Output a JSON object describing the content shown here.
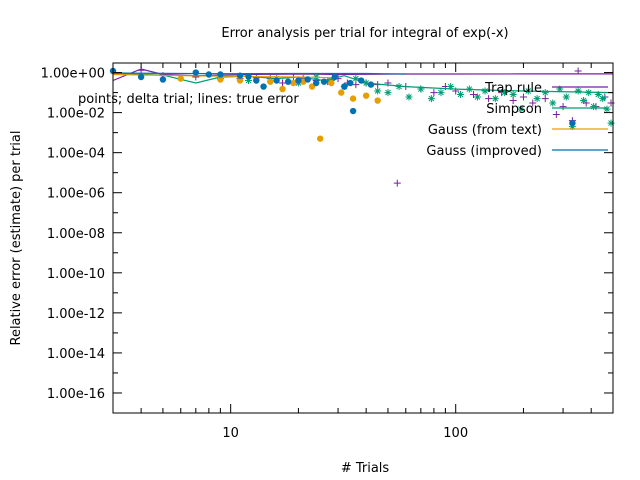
{
  "chart_data": {
    "type": "scatter",
    "title": "Error analysis per trial for integral of exp(-x)",
    "xlabel": "# Trials",
    "ylabel": "Relative error (estimate) per trial",
    "x_scale": "log",
    "y_scale": "log",
    "xlim": [
      3,
      500
    ],
    "ylim": [
      1e-17,
      3
    ],
    "x_ticks": [
      {
        "value": 10,
        "label": "10"
      },
      {
        "value": 100,
        "label": "100"
      }
    ],
    "y_ticks": [
      {
        "value": 1,
        "label": "1.00e+00"
      },
      {
        "value": 0.01,
        "label": "1.00e-02"
      },
      {
        "value": 0.0001,
        "label": "1.00e-04"
      },
      {
        "value": 1e-06,
        "label": "1.00e-06"
      },
      {
        "value": 1e-08,
        "label": "1.00e-08"
      },
      {
        "value": 1e-10,
        "label": "1.00e-10"
      },
      {
        "value": 1e-12,
        "label": "1.00e-12"
      },
      {
        "value": 1e-14,
        "label": "1.00e-14"
      },
      {
        "value": 1e-16,
        "label": "1.00e-16"
      }
    ],
    "grid": false,
    "legend_position": "top-right",
    "annotation": "points; delta trial; lines: true error",
    "series": [
      {
        "name": "Trap rule",
        "color": "#7b1fa2",
        "marker": "plus",
        "line": [
          [
            3,
            0.4
          ],
          [
            4,
            1.5
          ],
          [
            5,
            0.8
          ],
          [
            7,
            0.7
          ],
          [
            9,
            0.75
          ],
          [
            12,
            0.8
          ],
          [
            16,
            0.82
          ],
          [
            22,
            0.85
          ],
          [
            30,
            0.8
          ],
          [
            40,
            0.82
          ],
          [
            60,
            0.85
          ],
          [
            100,
            0.85
          ],
          [
            200,
            0.86
          ],
          [
            500,
            0.86
          ]
        ],
        "points": [
          [
            4,
            1.3
          ],
          [
            5,
            0.7
          ],
          [
            7,
            0.6
          ],
          [
            9,
            0.5
          ],
          [
            11,
            0.5
          ],
          [
            13,
            0.55
          ],
          [
            15,
            0.5
          ],
          [
            17,
            0.3
          ],
          [
            19,
            0.6
          ],
          [
            21,
            0.5
          ],
          [
            24,
            0.4
          ],
          [
            27,
            0.35
          ],
          [
            30,
            0.5
          ],
          [
            33,
            0.3
          ],
          [
            36,
            0.25
          ],
          [
            40,
            0.3
          ],
          [
            45,
            0.25
          ],
          [
            50,
            0.3
          ],
          [
            55,
            3e-06
          ],
          [
            60,
            0.2
          ],
          [
            70,
            0.15
          ],
          [
            80,
            0.1
          ],
          [
            90,
            0.2
          ],
          [
            100,
            0.12
          ],
          [
            120,
            0.08
          ],
          [
            140,
            0.05
          ],
          [
            160,
            0.1
          ],
          [
            180,
            0.04
          ],
          [
            200,
            0.06
          ],
          [
            220,
            0.03
          ],
          [
            250,
            0.05
          ],
          [
            280,
            0.008
          ],
          [
            300,
            0.02
          ],
          [
            330,
            0.004
          ],
          [
            350,
            1.2
          ],
          [
            380,
            0.03
          ],
          [
            420,
            0.02
          ],
          [
            460,
            0.06
          ],
          [
            490,
            0.03
          ]
        ]
      },
      {
        "name": "Simpson",
        "color": "#009e73",
        "marker": "star",
        "line": [
          [
            3,
            0.9
          ],
          [
            5,
            0.75
          ],
          [
            7,
            0.3
          ],
          [
            9,
            0.6
          ],
          [
            12,
            0.65
          ],
          [
            16,
            0.5
          ],
          [
            20,
            0.6
          ],
          [
            26,
            0.4
          ],
          [
            32,
            0.7
          ],
          [
            40,
            0.3
          ],
          [
            60,
            0.2
          ],
          [
            100,
            0.15
          ],
          [
            200,
            0.12
          ],
          [
            500,
            0.1
          ]
        ],
        "points": [
          [
            12,
            0.4
          ],
          [
            16,
            0.5
          ],
          [
            20,
            0.3
          ],
          [
            24,
            0.6
          ],
          [
            28,
            0.4
          ],
          [
            32,
            0.2
          ],
          [
            36,
            0.5
          ],
          [
            40,
            0.3
          ],
          [
            45,
            0.12
          ],
          [
            50,
            0.1
          ],
          [
            56,
            0.2
          ],
          [
            62,
            0.06
          ],
          [
            70,
            0.15
          ],
          [
            78,
            0.05
          ],
          [
            86,
            0.1
          ],
          [
            95,
            0.2
          ],
          [
            105,
            0.08
          ],
          [
            115,
            0.15
          ],
          [
            125,
            0.06
          ],
          [
            135,
            0.12
          ],
          [
            150,
            0.05
          ],
          [
            165,
            0.1
          ],
          [
            180,
            0.08
          ],
          [
            195,
            0.015
          ],
          [
            210,
            0.12
          ],
          [
            230,
            0.05
          ],
          [
            250,
            0.1
          ],
          [
            270,
            0.03
          ],
          [
            290,
            0.15
          ],
          [
            310,
            0.06
          ],
          [
            330,
            0.002
          ],
          [
            350,
            0.12
          ],
          [
            370,
            0.04
          ],
          [
            390,
            0.1
          ],
          [
            410,
            0.02
          ],
          [
            430,
            0.08
          ],
          [
            450,
            0.05
          ],
          [
            470,
            0.015
          ],
          [
            490,
            0.003
          ]
        ]
      },
      {
        "name": "Gauss (from text)",
        "color": "#e69f00",
        "marker": "circle",
        "line": [
          [
            3,
            0.8
          ],
          [
            6,
            0.7
          ],
          [
            10,
            0.65
          ],
          [
            20,
            0.6
          ],
          [
            30,
            0.55
          ]
        ],
        "points": [
          [
            6,
            0.5
          ],
          [
            9,
            0.45
          ],
          [
            11,
            0.4
          ],
          [
            13,
            0.4
          ],
          [
            15,
            0.35
          ],
          [
            17,
            0.15
          ],
          [
            19,
            0.3
          ],
          [
            21,
            0.35
          ],
          [
            23,
            0.2
          ],
          [
            25,
            0.0005
          ],
          [
            28,
            0.3
          ],
          [
            31,
            0.1
          ],
          [
            35,
            0.05
          ],
          [
            40,
            0.07
          ],
          [
            45,
            0.04
          ]
        ]
      },
      {
        "name": "Gauss (improved)",
        "color": "#0072b2",
        "marker": "circle",
        "line": [
          [
            3,
            0.95
          ],
          [
            6,
            0.9
          ],
          [
            10,
            0.88
          ],
          [
            20,
            0.9
          ],
          [
            40,
            0.9
          ],
          [
            60,
            0.85
          ]
        ],
        "points": [
          [
            3,
            1.2
          ],
          [
            4,
            0.6
          ],
          [
            5,
            0.45
          ],
          [
            7,
            1.0
          ],
          [
            8,
            0.8
          ],
          [
            9,
            0.8
          ],
          [
            11,
            0.7
          ],
          [
            12,
            0.65
          ],
          [
            13,
            0.4
          ],
          [
            14,
            0.2
          ],
          [
            16,
            0.4
          ],
          [
            18,
            0.35
          ],
          [
            20,
            0.4
          ],
          [
            22,
            0.45
          ],
          [
            24,
            0.3
          ],
          [
            26,
            0.35
          ],
          [
            29,
            0.6
          ],
          [
            32,
            0.2
          ],
          [
            34,
            0.3
          ],
          [
            35,
            0.012
          ],
          [
            38,
            0.4
          ],
          [
            42,
            0.25
          ],
          [
            330,
            0.003
          ]
        ]
      }
    ]
  }
}
